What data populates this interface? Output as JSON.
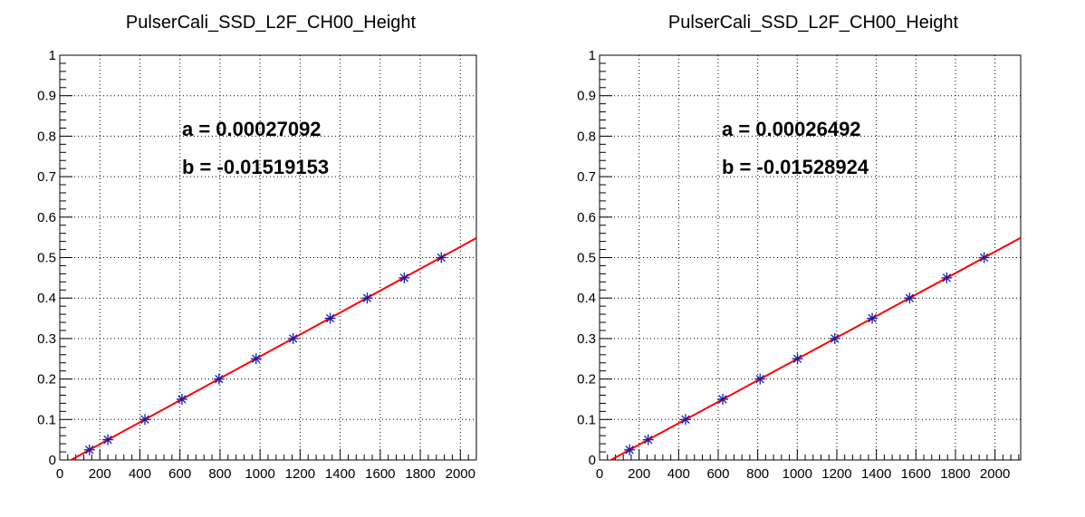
{
  "chart_data": [
    {
      "type": "scatter",
      "title": "PulserCali_SSD_L2F_CH00_Height",
      "xlim": [
        0,
        2080
      ],
      "ylim": [
        0,
        1
      ],
      "xticks": [
        0,
        200,
        400,
        600,
        800,
        1000,
        1200,
        1400,
        1600,
        1800,
        2000
      ],
      "xtick_labels": [
        "0",
        "200",
        "400",
        "600",
        "800",
        "1000",
        "1200",
        "1400",
        "1600",
        "1800",
        "2000"
      ],
      "yticks": [
        0,
        0.1,
        0.2,
        0.3,
        0.4,
        0.5,
        0.6,
        0.7,
        0.8,
        0.9,
        1
      ],
      "ytick_labels": [
        "0",
        "0.1",
        "0.2",
        "0.3",
        "0.4",
        "0.5",
        "0.6",
        "0.7",
        "0.8",
        "0.9",
        "1"
      ],
      "grid": true,
      "marker_color": "#1a1aa8",
      "fit_color": "#ff0000",
      "points": [
        {
          "x": 148,
          "y": 0.025
        },
        {
          "x": 240,
          "y": 0.05
        },
        {
          "x": 425,
          "y": 0.1
        },
        {
          "x": 610,
          "y": 0.15
        },
        {
          "x": 795,
          "y": 0.2
        },
        {
          "x": 980,
          "y": 0.25
        },
        {
          "x": 1165,
          "y": 0.3
        },
        {
          "x": 1350,
          "y": 0.35
        },
        {
          "x": 1535,
          "y": 0.4
        },
        {
          "x": 1720,
          "y": 0.45
        },
        {
          "x": 1905,
          "y": 0.5
        }
      ],
      "fit": {
        "a": 0.00027092,
        "b": -0.01519153
      },
      "annotations": [
        "a = 0.00027092",
        "b = -0.01519153"
      ]
    },
    {
      "type": "scatter",
      "title": "PulserCali_SSD_L2F_CH00_Height",
      "xlim": [
        0,
        2130
      ],
      "ylim": [
        0,
        1
      ],
      "xticks": [
        0,
        200,
        400,
        600,
        800,
        1000,
        1200,
        1400,
        1600,
        1800,
        2000
      ],
      "xtick_labels": [
        "0",
        "200",
        "400",
        "600",
        "800",
        "1000",
        "1200",
        "1400",
        "1600",
        "1800",
        "2000"
      ],
      "yticks": [
        0,
        0.1,
        0.2,
        0.3,
        0.4,
        0.5,
        0.6,
        0.7,
        0.8,
        0.9,
        1
      ],
      "ytick_labels": [
        "0",
        "0.1",
        "0.2",
        "0.3",
        "0.4",
        "0.5",
        "0.6",
        "0.7",
        "0.8",
        "0.9",
        "1"
      ],
      "grid": true,
      "marker_color": "#1a1aa8",
      "fit_color": "#ff0000",
      "points": [
        {
          "x": 152,
          "y": 0.025
        },
        {
          "x": 246,
          "y": 0.05
        },
        {
          "x": 435,
          "y": 0.1
        },
        {
          "x": 623,
          "y": 0.15
        },
        {
          "x": 812,
          "y": 0.2
        },
        {
          "x": 1001,
          "y": 0.25
        },
        {
          "x": 1190,
          "y": 0.3
        },
        {
          "x": 1379,
          "y": 0.35
        },
        {
          "x": 1568,
          "y": 0.4
        },
        {
          "x": 1756,
          "y": 0.45
        },
        {
          "x": 1945,
          "y": 0.5
        }
      ],
      "fit": {
        "a": 0.00026492,
        "b": -0.01528924
      },
      "annotations": [
        "a = 0.00026492",
        "b = -0.01528924"
      ]
    }
  ]
}
